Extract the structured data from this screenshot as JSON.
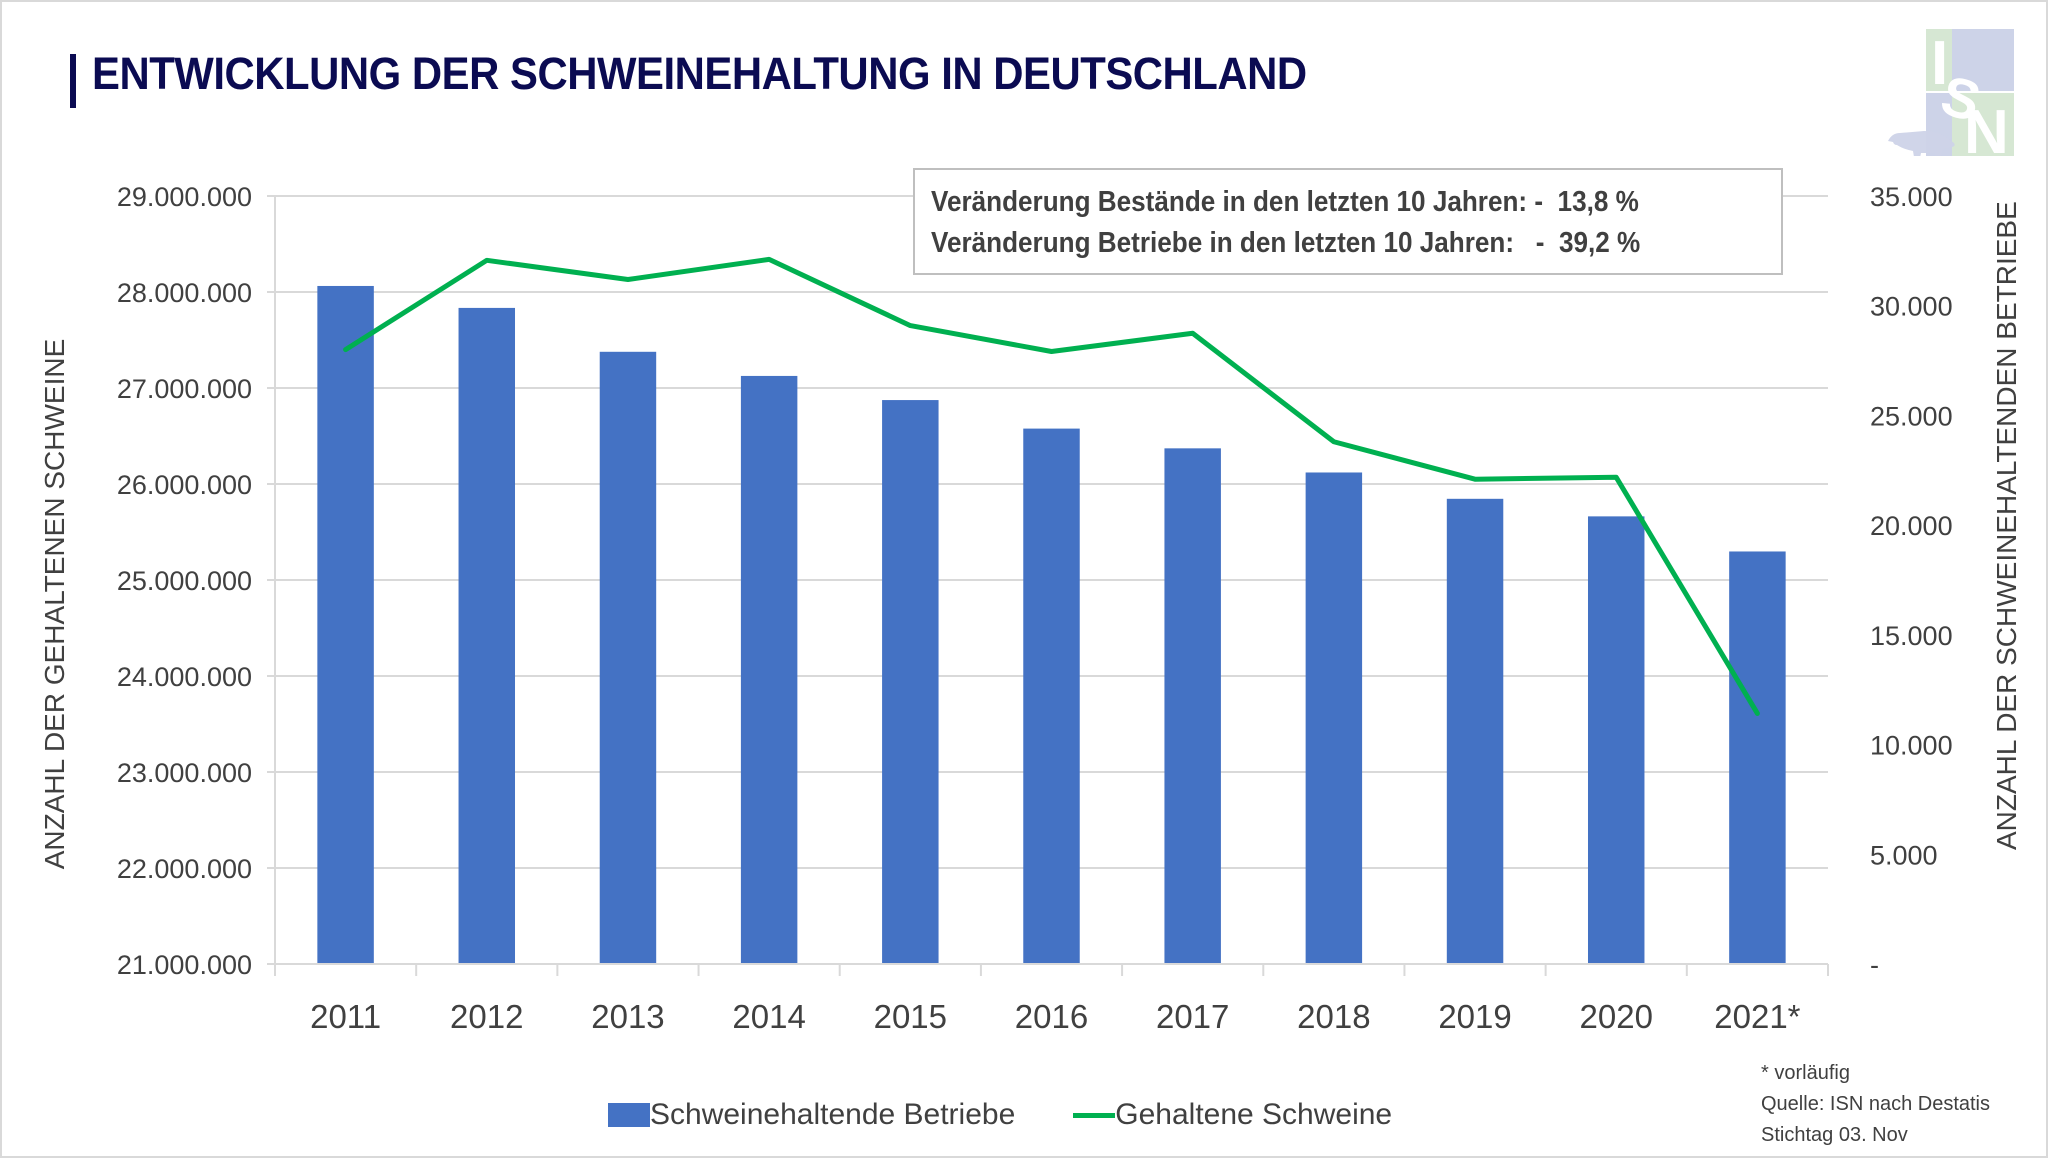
{
  "title": "ENTWICKLUNG DER SCHWEINEHALTUNG IN DEUTSCHLAND",
  "logo": {
    "text": "ISN",
    "letters": [
      "I",
      "S",
      "N"
    ],
    "icon": "pig-icon",
    "colors": {
      "green": "#d6e7d3",
      "blue": "#cdd3e8"
    }
  },
  "infobox": {
    "lines": [
      "Veränderung Bestände in den letzten 10 Jahren: -  13,8 %",
      "Veränderung Betriebe in den letzten 10 Jahren:   -  39,2 %"
    ]
  },
  "footnote": {
    "lines": [
      "* vorläufig",
      "Quelle: ISN nach Destatis",
      "Stichtag 03. Nov"
    ]
  },
  "chart_data": {
    "type": "bar+line",
    "title": "ENTWICKLUNG DER SCHWEINEHALTUNG IN DEUTSCHLAND",
    "categories": [
      "2011",
      "2012",
      "2013",
      "2014",
      "2015",
      "2016",
      "2017",
      "2018",
      "2019",
      "2020",
      "2021*"
    ],
    "series": [
      {
        "name": "Schweinehaltende Betriebe",
        "type": "bar",
        "axis": "right",
        "color": "#4472c4",
        "values": [
          30900,
          29900,
          27900,
          26800,
          25700,
          24400,
          23500,
          22400,
          21200,
          20400,
          18800
        ]
      },
      {
        "name": "Gehaltene Schweine",
        "type": "line",
        "axis": "left",
        "color": "#00b050",
        "values": [
          27400000,
          28330000,
          28130000,
          28340000,
          27650000,
          27380000,
          27570000,
          26440000,
          26050000,
          26070000,
          23610000
        ]
      }
    ],
    "y_left": {
      "label": "ANZAHL DER GEHALTENEN SCHWEINE",
      "range": [
        21000000,
        29000000
      ],
      "ticks": [
        21000000,
        22000000,
        23000000,
        24000000,
        25000000,
        26000000,
        27000000,
        28000000,
        29000000
      ],
      "tick_labels": [
        "21.000.000",
        "22.000.000",
        "23.000.000",
        "24.000.000",
        "25.000.000",
        "26.000.000",
        "27.000.000",
        "28.000.000",
        "29.000.000"
      ]
    },
    "y_right": {
      "label": "ANZAHL DER SCHWEINEHALTENDEN BETRIEBE",
      "range": [
        0,
        35000
      ],
      "ticks": [
        0,
        5000,
        10000,
        15000,
        20000,
        25000,
        30000,
        35000
      ],
      "tick_labels": [
        "-",
        "5.000",
        "10.000",
        "15.000",
        "20.000",
        "25.000",
        "30.000",
        "35.000"
      ]
    },
    "grid": true,
    "legend": {
      "position": "bottom",
      "entries": [
        "Schweinehaltende Betriebe",
        "Gehaltene Schweine"
      ]
    }
  }
}
